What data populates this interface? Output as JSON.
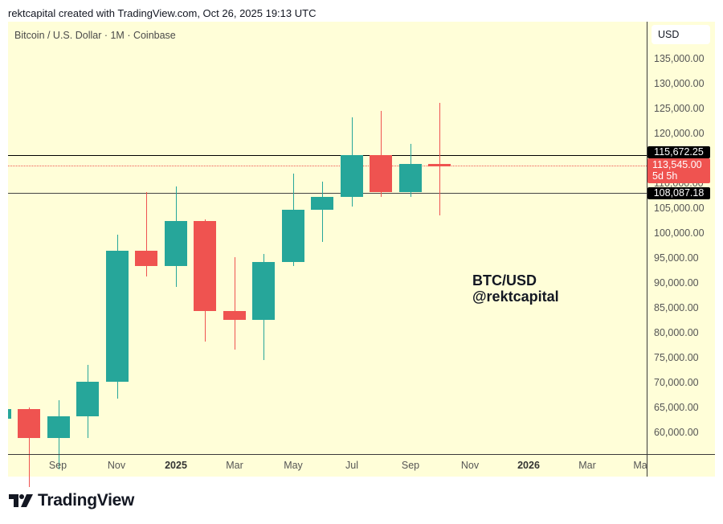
{
  "credit": "rektcapital created with TradingView.com, Oct 26, 2025 19:13 UTC",
  "symbol_title": "Bitcoin / U.S. Dollar · 1M · Coinbase",
  "currency": "USD",
  "annotation": {
    "line1": "BTC/USD",
    "line2": "@rektcapital"
  },
  "logo_text": "TradingView",
  "colors": {
    "bull": "#26a69a",
    "bear": "#ef5350",
    "background": "#fffed8",
    "level_line": "#000000"
  },
  "price_labels": {
    "resistance": "115,672.25",
    "current": "113,545.00",
    "countdown": "5d 5h",
    "support": "108,087.18"
  },
  "chart_data": {
    "type": "candlestick",
    "title": "Bitcoin / U.S. Dollar · 1M · Coinbase",
    "xlabel": "",
    "ylabel": "USD",
    "ylim": [
      55000,
      142000
    ],
    "y_ticks": [
      "135,000.00",
      "130,000.00",
      "125,000.00",
      "120,000.00",
      "110,000.00",
      "105,000.00",
      "100,000.00",
      "95,000.00",
      "90,000.00",
      "85,000.00",
      "80,000.00",
      "75,000.00",
      "70,000.00",
      "65,000.00",
      "60,000.00"
    ],
    "x_ticks": [
      "Sep",
      "Nov",
      "2025",
      "Mar",
      "May",
      "Jul",
      "Sep",
      "Nov",
      "2026",
      "Mar",
      "Ma"
    ],
    "horizontal_levels": [
      {
        "name": "resistance",
        "value": 115672.25,
        "style": "solid"
      },
      {
        "name": "support",
        "value": 108087.18,
        "style": "solid"
      },
      {
        "name": "last_price",
        "value": 113545.0,
        "style": "dotted"
      }
    ],
    "candles": [
      {
        "month": "Jul 2024",
        "open": 62700,
        "high": 70000,
        "low": 62500,
        "close": 64600,
        "partial": true
      },
      {
        "month": "Aug 2024",
        "open": 64600,
        "high": 65000,
        "low": 49000,
        "close": 58900
      },
      {
        "month": "Sep 2024",
        "open": 58900,
        "high": 66500,
        "low": 52500,
        "close": 63300
      },
      {
        "month": "Oct 2024",
        "open": 63300,
        "high": 73600,
        "low": 58900,
        "close": 70200
      },
      {
        "month": "Nov 2024",
        "open": 70200,
        "high": 99700,
        "low": 66800,
        "close": 96400
      },
      {
        "month": "Dec 2024",
        "open": 96400,
        "high": 108200,
        "low": 91300,
        "close": 93400
      },
      {
        "month": "Jan 2025",
        "open": 93400,
        "high": 109300,
        "low": 89200,
        "close": 102400
      },
      {
        "month": "Feb 2025",
        "open": 102400,
        "high": 102800,
        "low": 78200,
        "close": 84300
      },
      {
        "month": "Mar 2025",
        "open": 84300,
        "high": 95100,
        "low": 76600,
        "close": 82500
      },
      {
        "month": "Apr 2025",
        "open": 82500,
        "high": 95800,
        "low": 74500,
        "close": 94200
      },
      {
        "month": "May 2025",
        "open": 94200,
        "high": 111900,
        "low": 93400,
        "close": 104600
      },
      {
        "month": "Jun 2025",
        "open": 104600,
        "high": 110400,
        "low": 98200,
        "close": 107200
      },
      {
        "month": "Jul 2025",
        "open": 107200,
        "high": 123200,
        "low": 105300,
        "close": 115700
      },
      {
        "month": "Aug 2025",
        "open": 115700,
        "high": 124500,
        "low": 107300,
        "close": 108300
      },
      {
        "month": "Sep 2025",
        "open": 108300,
        "high": 117900,
        "low": 107300,
        "close": 113900
      },
      {
        "month": "Oct 2025",
        "open": 113900,
        "high": 126200,
        "low": 103500,
        "close": 113545
      }
    ]
  }
}
